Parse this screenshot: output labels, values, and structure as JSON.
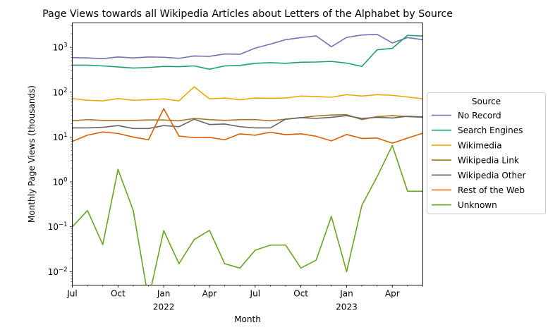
{
  "chart_data": {
    "type": "line",
    "title": "Page Views towards all Wikipedia Articles about Letters of the Alphabet by Source",
    "xlabel": "Month",
    "ylabel": "Monthly Page Views (thousands)",
    "yscale": "log",
    "ylim": [
      0.005,
      3500
    ],
    "xlim": [
      "2021-07",
      "2023-06"
    ],
    "grid": false,
    "legend": {
      "title": "Source",
      "placement": "outside-right"
    },
    "x": [
      "2021-07",
      "2021-08",
      "2021-09",
      "2021-10",
      "2021-11",
      "2021-12",
      "2022-01",
      "2022-02",
      "2022-03",
      "2022-04",
      "2022-05",
      "2022-06",
      "2022-07",
      "2022-08",
      "2022-09",
      "2022-10",
      "2022-11",
      "2022-12",
      "2023-01",
      "2023-02",
      "2023-03",
      "2023-04",
      "2023-05",
      "2023-06"
    ],
    "x_major_ticks": [
      {
        "x": "2021-07",
        "label": "Jul",
        "sub": ""
      },
      {
        "x": "2021-10",
        "label": "Oct",
        "sub": ""
      },
      {
        "x": "2022-01",
        "label": "Jan",
        "sub": "2022"
      },
      {
        "x": "2022-04",
        "label": "Apr",
        "sub": ""
      },
      {
        "x": "2022-07",
        "label": "Jul",
        "sub": ""
      },
      {
        "x": "2022-10",
        "label": "Oct",
        "sub": ""
      },
      {
        "x": "2023-01",
        "label": "Jan",
        "sub": "2023"
      },
      {
        "x": "2023-04",
        "label": "Apr",
        "sub": ""
      }
    ],
    "y_major_ticks": [
      {
        "value": 0.01,
        "mant": "10",
        "exp": "−2"
      },
      {
        "value": 0.1,
        "mant": "10",
        "exp": "−1"
      },
      {
        "value": 1,
        "mant": "10",
        "exp": "0"
      },
      {
        "value": 10,
        "mant": "10",
        "exp": "1"
      },
      {
        "value": 100,
        "mant": "10",
        "exp": "2"
      },
      {
        "value": 1000,
        "mant": "10",
        "exp": "3"
      }
    ],
    "series": [
      {
        "name": "No Record",
        "color": "#7570b3",
        "values": [
          590,
          580,
          560,
          610,
          580,
          610,
          600,
          570,
          640,
          630,
          710,
          700,
          960,
          1180,
          1480,
          1650,
          1800,
          1030,
          1660,
          1880,
          1950,
          1250,
          1650,
          1480
        ]
      },
      {
        "name": "Search Engines",
        "color": "#1b9e77",
        "values": [
          400,
          400,
          385,
          365,
          345,
          355,
          375,
          370,
          385,
          325,
          385,
          395,
          440,
          455,
          440,
          465,
          470,
          485,
          445,
          375,
          880,
          950,
          1850,
          1780
        ]
      },
      {
        "name": "Wikimedia",
        "color": "#e6ab02",
        "values": [
          72,
          66,
          64,
          72,
          66,
          68,
          71,
          64,
          132,
          71,
          74,
          68,
          74,
          73,
          74,
          82,
          80,
          77,
          88,
          82,
          88,
          85,
          78,
          71
        ]
      },
      {
        "name": "Wikipedia Link",
        "color": "#a6761d",
        "values": [
          23,
          24.5,
          23.5,
          23.5,
          23.5,
          24,
          24,
          23,
          26,
          24.5,
          23.5,
          24.5,
          24.5,
          23,
          25,
          27,
          29.5,
          31,
          31.5,
          24.5,
          28.5,
          30,
          28.5,
          27.5
        ]
      },
      {
        "name": "Wikipedia Other",
        "color": "#666666",
        "values": [
          16,
          16,
          16.5,
          18,
          15.5,
          15.5,
          18,
          17,
          25,
          19,
          19.5,
          17,
          16,
          16,
          25,
          27,
          26,
          27.5,
          30,
          26,
          27.5,
          26.5,
          29,
          28
        ]
      },
      {
        "name": "Rest of the Web",
        "color": "#d95f02",
        "values": [
          8,
          11,
          13,
          12,
          10,
          8.7,
          43,
          10.5,
          9.7,
          9.8,
          8.7,
          11.8,
          11,
          12.8,
          11.3,
          11.8,
          10.4,
          8.2,
          11.4,
          9.3,
          9.5,
          7.3,
          9.5,
          12.2
        ]
      },
      {
        "name": "Unknown",
        "color": "#66a61e",
        "values": [
          0.1,
          0.23,
          0.04,
          1.9,
          0.23,
          null,
          0.082,
          0.015,
          0.052,
          0.083,
          0.015,
          0.012,
          0.03,
          0.039,
          0.039,
          0.012,
          0.018,
          0.17,
          0.01,
          0.3,
          1.3,
          6.5,
          0.62,
          0.62
        ]
      }
    ]
  }
}
